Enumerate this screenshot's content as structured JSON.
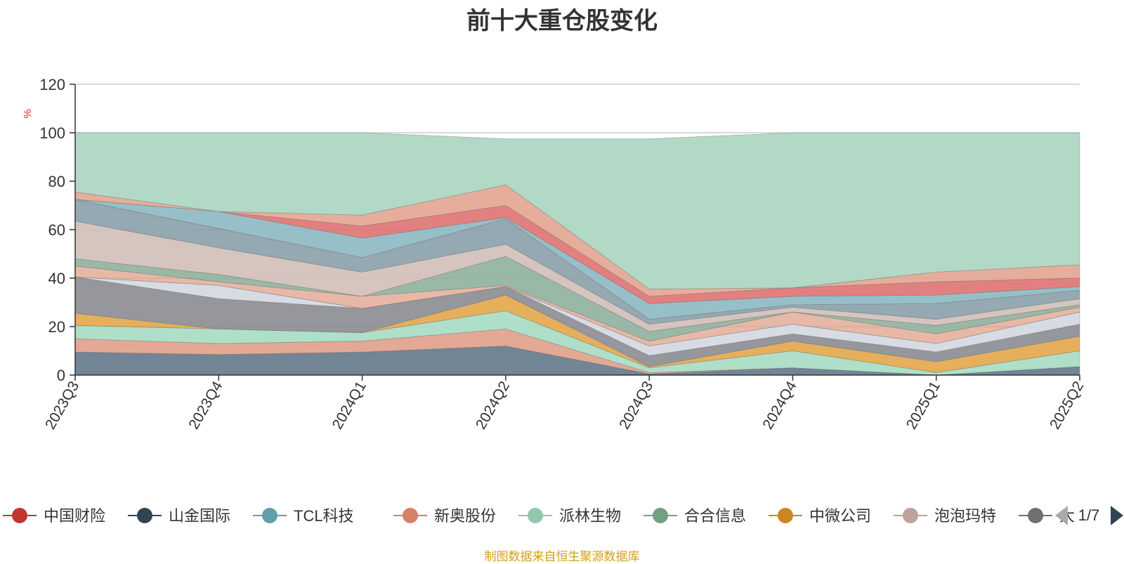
{
  "title": "前十大重仓股变化",
  "source_note": "制图数据来自恒生聚源数据库",
  "legend": {
    "items": [
      "中国财险",
      "山金国际",
      "TCL科技",
      "新奥股份",
      "派林生物",
      "合合信息",
      "中微公司",
      "泡泡玛特",
      "大"
    ],
    "colors": [
      "#c23531",
      "#2f4554",
      "#61a0a8",
      "#d48265",
      "#91c7ae",
      "#749f83",
      "#ca8622",
      "#bda29a",
      "#6e7074"
    ],
    "page_text": "1/7"
  },
  "chart_data": {
    "type": "area",
    "title": "前十大重仓股变化",
    "ylabel": "%",
    "ylim": [
      0,
      120
    ],
    "yticks": [
      0,
      20,
      40,
      60,
      80,
      100,
      120
    ],
    "categories": [
      "2023Q3",
      "2023Q4",
      "2024Q1",
      "2024Q2",
      "2024Q3",
      "2024Q4",
      "2025Q1",
      "2025Q2"
    ],
    "grid": true,
    "legend_position": "bottom",
    "stacked": true,
    "bands": [
      {
        "lower": [
          0,
          0,
          0,
          0,
          0,
          0,
          0,
          0
        ],
        "upper": [
          9.5,
          8.5,
          9.5,
          12,
          0.5,
          3,
          0,
          3.5
        ],
        "color": "#62788a",
        "opacity": 0.9
      },
      {
        "lower": [
          9.5,
          8.5,
          9.5,
          12,
          0.5,
          3,
          0,
          3.5
        ],
        "upper": [
          15,
          13,
          14,
          19,
          1,
          3,
          0,
          3.5
        ],
        "color": "#e0a08a",
        "opacity": 0.9
      },
      {
        "lower": [
          15,
          13,
          14,
          19,
          1,
          3,
          0,
          3.5
        ],
        "upper": [
          20.5,
          19,
          17.5,
          26.5,
          3,
          10,
          1,
          10
        ],
        "color": "#a6dbc3",
        "opacity": 0.9
      },
      {
        "lower": [
          20.5,
          19,
          17.5,
          26.5,
          3,
          10,
          1,
          10
        ],
        "upper": [
          25.5,
          19,
          17.5,
          33,
          3.5,
          14,
          5.5,
          16
        ],
        "color": "#e2a64a",
        "opacity": 0.9
      },
      {
        "lower": [
          25.5,
          19,
          17.5,
          33,
          3.5,
          14,
          5.5,
          16
        ],
        "upper": [
          40.5,
          31.5,
          27.5,
          36.5,
          8,
          17,
          9.5,
          21
        ],
        "color": "#8a8c92",
        "opacity": 0.9
      },
      {
        "lower": [
          40.5,
          31.5,
          27.5,
          36.5,
          8,
          17,
          9.5,
          21
        ],
        "upper": [
          40.5,
          37,
          27.5,
          36.5,
          12,
          21,
          13,
          26
        ],
        "color": "#d3d7e0",
        "opacity": 0.9
      },
      {
        "lower": [
          40.5,
          37,
          27.5,
          36.5,
          12,
          21,
          13,
          26
        ],
        "upper": [
          45,
          38.5,
          32.5,
          37,
          14,
          26,
          17,
          28
        ],
        "color": "#e0a08a",
        "opacity": 0.75
      },
      {
        "lower": [
          45,
          38.5,
          32.5,
          37,
          14,
          26,
          17,
          28
        ],
        "upper": [
          48,
          41.5,
          32.5,
          49,
          18,
          26,
          20.5,
          29
        ],
        "color": "#8fb09c",
        "opacity": 0.9
      },
      {
        "lower": [
          48,
          41.5,
          32.5,
          49,
          18,
          26,
          20.5,
          29
        ],
        "upper": [
          63.5,
          52.5,
          42.5,
          54,
          21,
          28,
          23,
          31.5
        ],
        "color": "#d1beb8",
        "opacity": 0.9
      },
      {
        "lower": [
          63.5,
          52.5,
          42.5,
          54,
          21,
          28,
          23,
          31.5
        ],
        "upper": [
          72.5,
          60.5,
          48.5,
          64.5,
          23,
          29,
          29.5,
          35
        ],
        "color": "#88a0aa",
        "opacity": 0.9
      },
      {
        "lower": [
          72.5,
          60.5,
          48.5,
          64.5,
          23,
          29,
          29.5,
          35
        ],
        "upper": [
          72.5,
          67.5,
          56.5,
          65,
          29.5,
          32.5,
          33,
          36.5
        ],
        "color": "#8cb8c2",
        "opacity": 0.9
      },
      {
        "lower": [
          72.5,
          67.5,
          56.5,
          65,
          29.5,
          32.5,
          33,
          36.5
        ],
        "upper": [
          72.5,
          67.5,
          61.5,
          70,
          32.5,
          36,
          38.5,
          40
        ],
        "color": "#df7272",
        "opacity": 0.9
      },
      {
        "lower": [
          72.5,
          67.5,
          61.5,
          70,
          32.5,
          36,
          38.5,
          40
        ],
        "upper": [
          75.5,
          67.5,
          66,
          78.5,
          35.5,
          36,
          42.5,
          45.5
        ],
        "color": "#e3a490",
        "opacity": 0.9
      },
      {
        "lower": [
          75.5,
          67.5,
          66,
          78.5,
          35.5,
          36,
          42.5,
          45.5
        ],
        "upper": [
          100,
          100,
          100,
          97.5,
          97.5,
          100,
          100,
          100
        ],
        "color": "#b2d8c6",
        "opacity": 1
      }
    ]
  }
}
